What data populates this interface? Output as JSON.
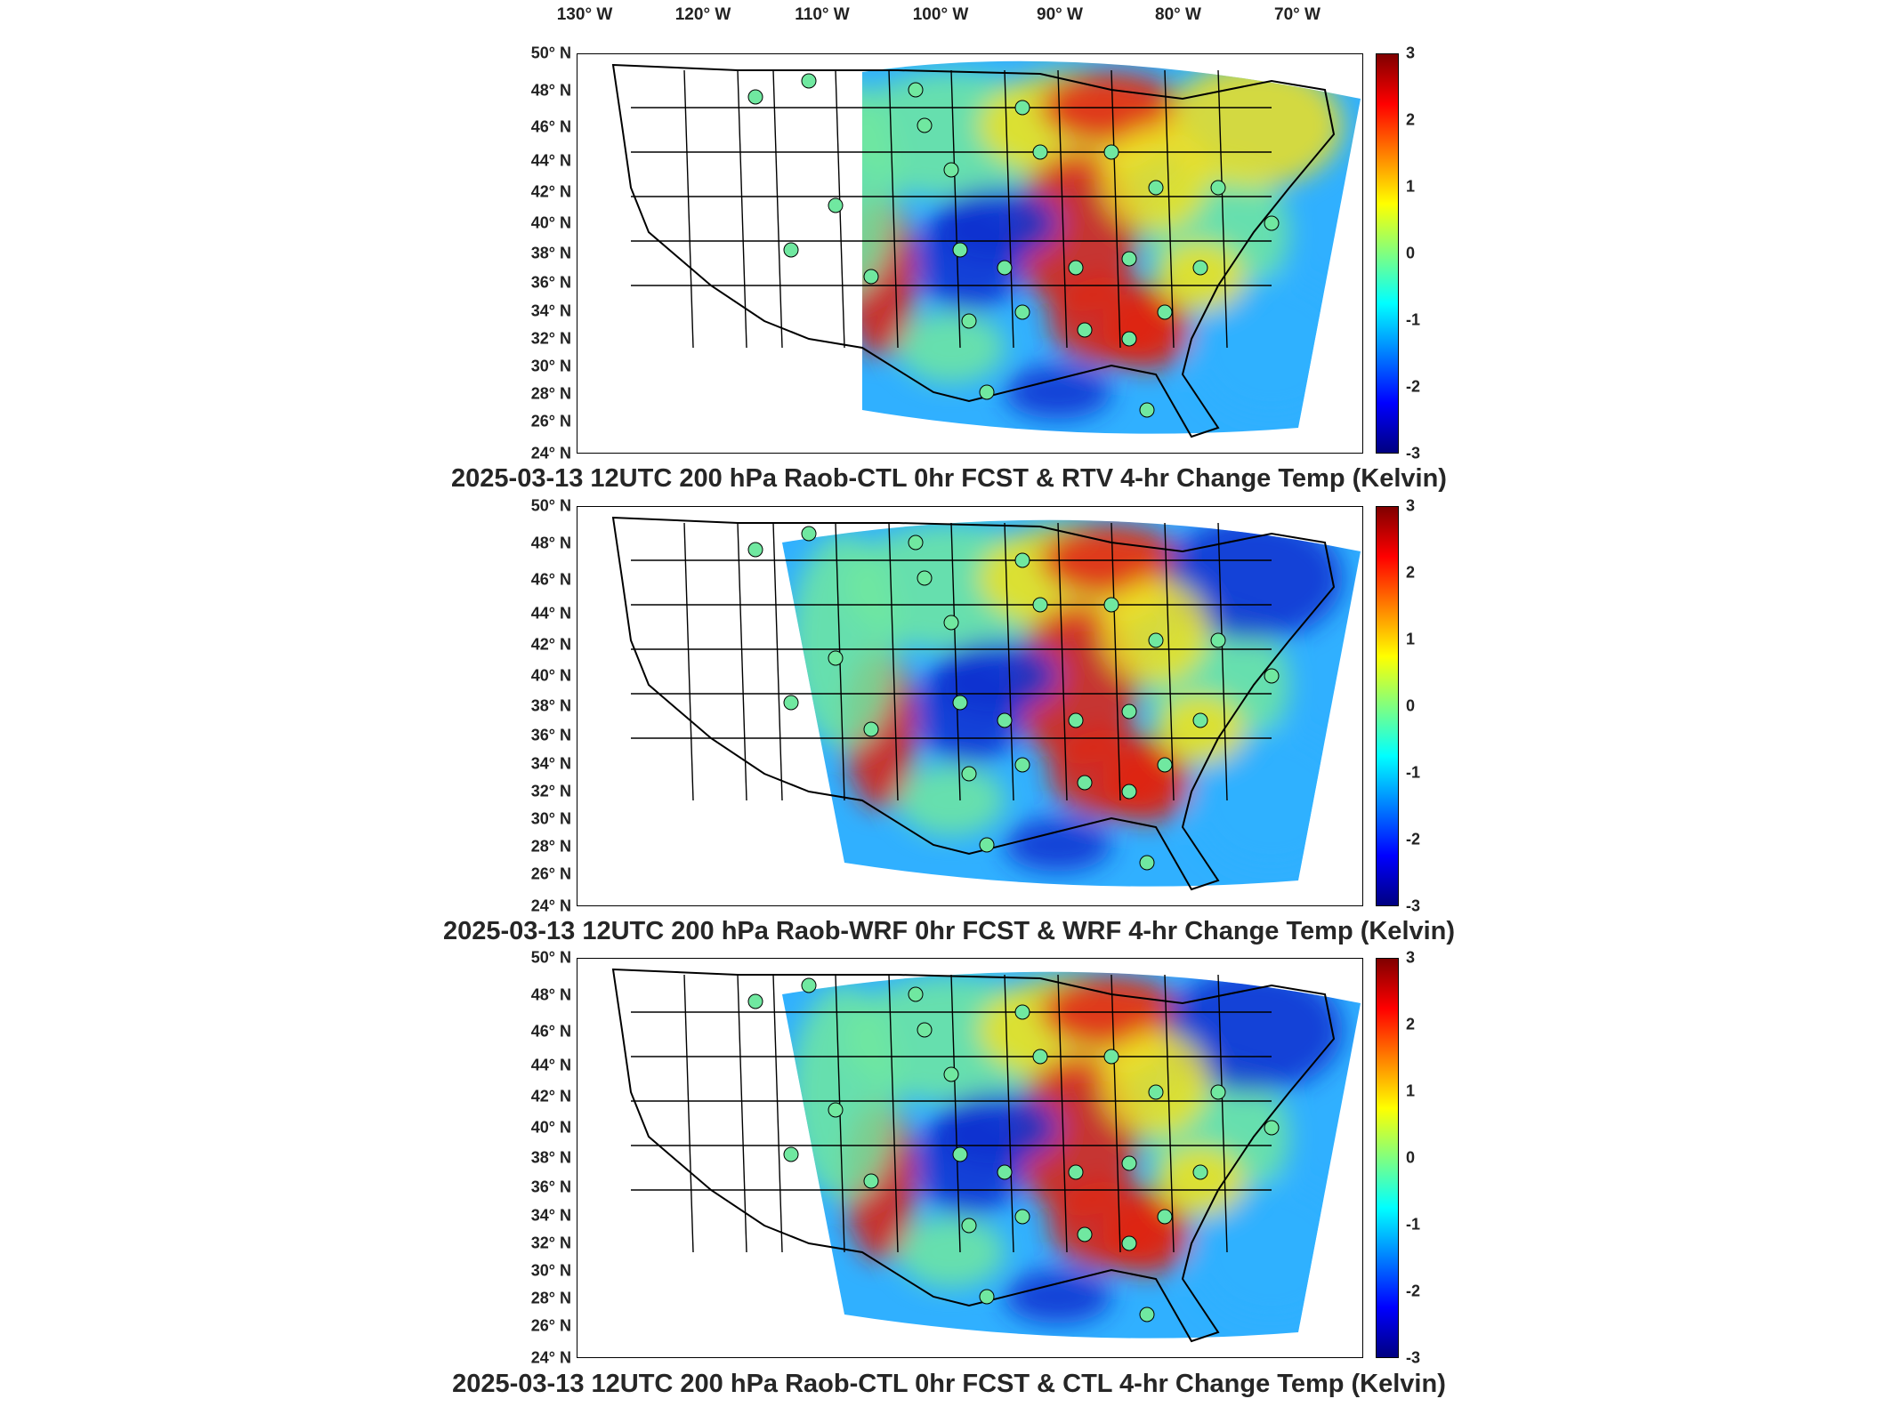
{
  "longitude_labels": [
    "130° W",
    "120° W",
    "110° W",
    "100° W",
    "90° W",
    "80° W",
    "70° W"
  ],
  "latitude_labels": [
    "50° N",
    "48° N",
    "46° N",
    "44° N",
    "42° N",
    "40° N",
    "38° N",
    "36° N",
    "34° N",
    "32° N",
    "30° N",
    "28° N",
    "26° N",
    "24° N"
  ],
  "colorbar": {
    "ticks": [
      "3",
      "2",
      "1",
      "0",
      "-1",
      "-2",
      "-3"
    ],
    "range": [
      -3,
      3
    ],
    "colormap": "jet"
  },
  "panels": [
    {
      "title": "2025-03-13 12UTC 200 hPa Raob-CTL 0hr FCST & RTV 4-hr Change Temp (Kelvin)"
    },
    {
      "title": "2025-03-13 12UTC 200 hPa Raob-WRF 0hr FCST & WRF 4-hr Change Temp (Kelvin)"
    },
    {
      "title": "2025-03-13 12UTC 200 hPa Raob-CTL 0hr FCST & CTL 4-hr Change Temp (Kelvin)"
    }
  ],
  "field_colors": {
    "cold": "#1030d0",
    "cool": "#30b0ff",
    "neutral": "#70e8a0",
    "warm": "#f0e020",
    "hot": "#e02010"
  }
}
